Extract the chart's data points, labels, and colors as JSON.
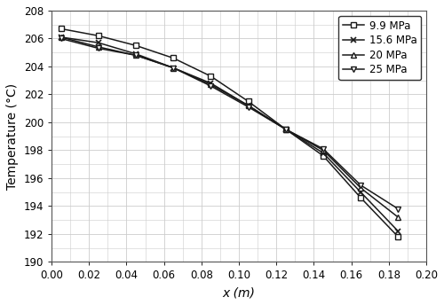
{
  "title": "",
  "xlabel": "x (m)",
  "ylabel": "Temperature (°C)",
  "xlim": [
    0.0,
    0.2
  ],
  "ylim": [
    190,
    208
  ],
  "xticks": [
    0.0,
    0.02,
    0.04,
    0.06,
    0.08,
    0.1,
    0.12,
    0.14,
    0.16,
    0.18,
    0.2
  ],
  "yticks": [
    190,
    192,
    194,
    196,
    198,
    200,
    202,
    204,
    206,
    208
  ],
  "series": [
    {
      "label": "9.9 MPa",
      "marker": "s",
      "x": [
        0.005,
        0.025,
        0.045,
        0.065,
        0.085,
        0.105,
        0.125,
        0.145,
        0.165,
        0.185
      ],
      "y": [
        206.7,
        206.2,
        205.5,
        204.6,
        203.3,
        201.5,
        199.5,
        197.6,
        194.6,
        191.8
      ]
    },
    {
      "label": "15.6 MPa",
      "marker": "x",
      "x": [
        0.005,
        0.025,
        0.045,
        0.065,
        0.085,
        0.105,
        0.125,
        0.145,
        0.165,
        0.185
      ],
      "y": [
        206.1,
        205.7,
        204.9,
        203.9,
        202.8,
        201.2,
        199.5,
        197.8,
        195.0,
        192.2
      ]
    },
    {
      "label": "20 MPa",
      "marker": "^",
      "x": [
        0.005,
        0.025,
        0.045,
        0.065,
        0.085,
        0.105,
        0.125,
        0.145,
        0.165,
        0.185
      ],
      "y": [
        206.1,
        205.4,
        204.8,
        203.9,
        202.7,
        201.2,
        199.5,
        198.0,
        195.3,
        193.2
      ]
    },
    {
      "label": "25 MPa",
      "marker": "v",
      "x": [
        0.005,
        0.025,
        0.045,
        0.065,
        0.085,
        0.105,
        0.125,
        0.145,
        0.165,
        0.185
      ],
      "y": [
        206.0,
        205.3,
        204.8,
        203.9,
        202.6,
        201.1,
        199.5,
        198.1,
        195.5,
        193.8
      ]
    }
  ],
  "line_color": "#1a1a1a",
  "background_color": "#ffffff",
  "plot_bg_color": "#ffffff",
  "grid_color": "#cccccc",
  "legend_fontsize": 8.5,
  "axis_fontsize": 10,
  "tick_fontsize": 8.5,
  "figsize": [
    5.0,
    3.44
  ],
  "dpi": 100
}
